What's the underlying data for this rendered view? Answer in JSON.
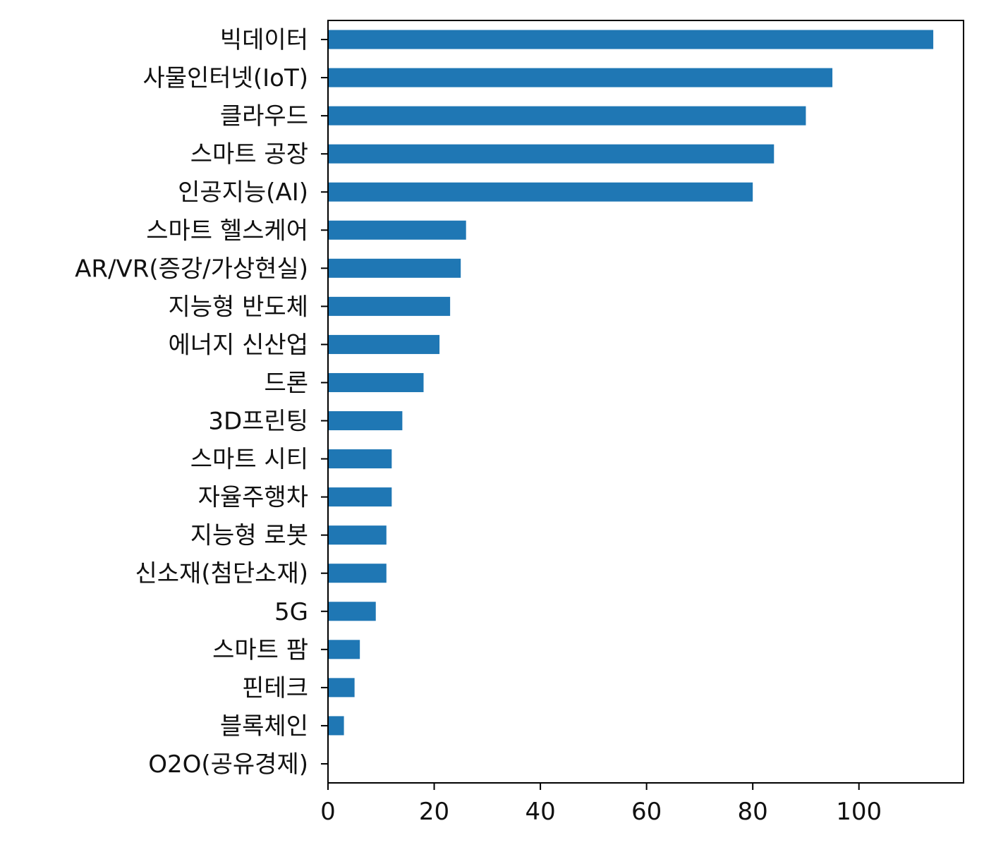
{
  "chart_data": {
    "type": "bar",
    "orientation": "horizontal",
    "categories": [
      "빅데이터",
      "사물인터넷(IoT)",
      "클라우드",
      "스마트 공장",
      "인공지능(AI)",
      "스마트 헬스케어",
      "AR/VR(증강/가상현실)",
      "지능형 반도체",
      "에너지 신산업",
      "드론",
      "3D프린팅",
      "스마트 시티",
      "자율주행차",
      "지능형 로봇",
      "신소재(첨단소재)",
      "5G",
      "스마트 팜",
      "핀테크",
      "블록체인",
      "O2O(공유경제)"
    ],
    "values": [
      114,
      95,
      90,
      84,
      80,
      26,
      25,
      23,
      21,
      18,
      14,
      12,
      12,
      11,
      11,
      9,
      6,
      5,
      3,
      0
    ],
    "xticks": [
      0,
      20,
      40,
      60,
      80,
      100
    ],
    "xlim": [
      0,
      119.7
    ],
    "title": "",
    "xlabel": "",
    "ylabel": "",
    "grid": false,
    "bar_color": "#1f77b4"
  }
}
